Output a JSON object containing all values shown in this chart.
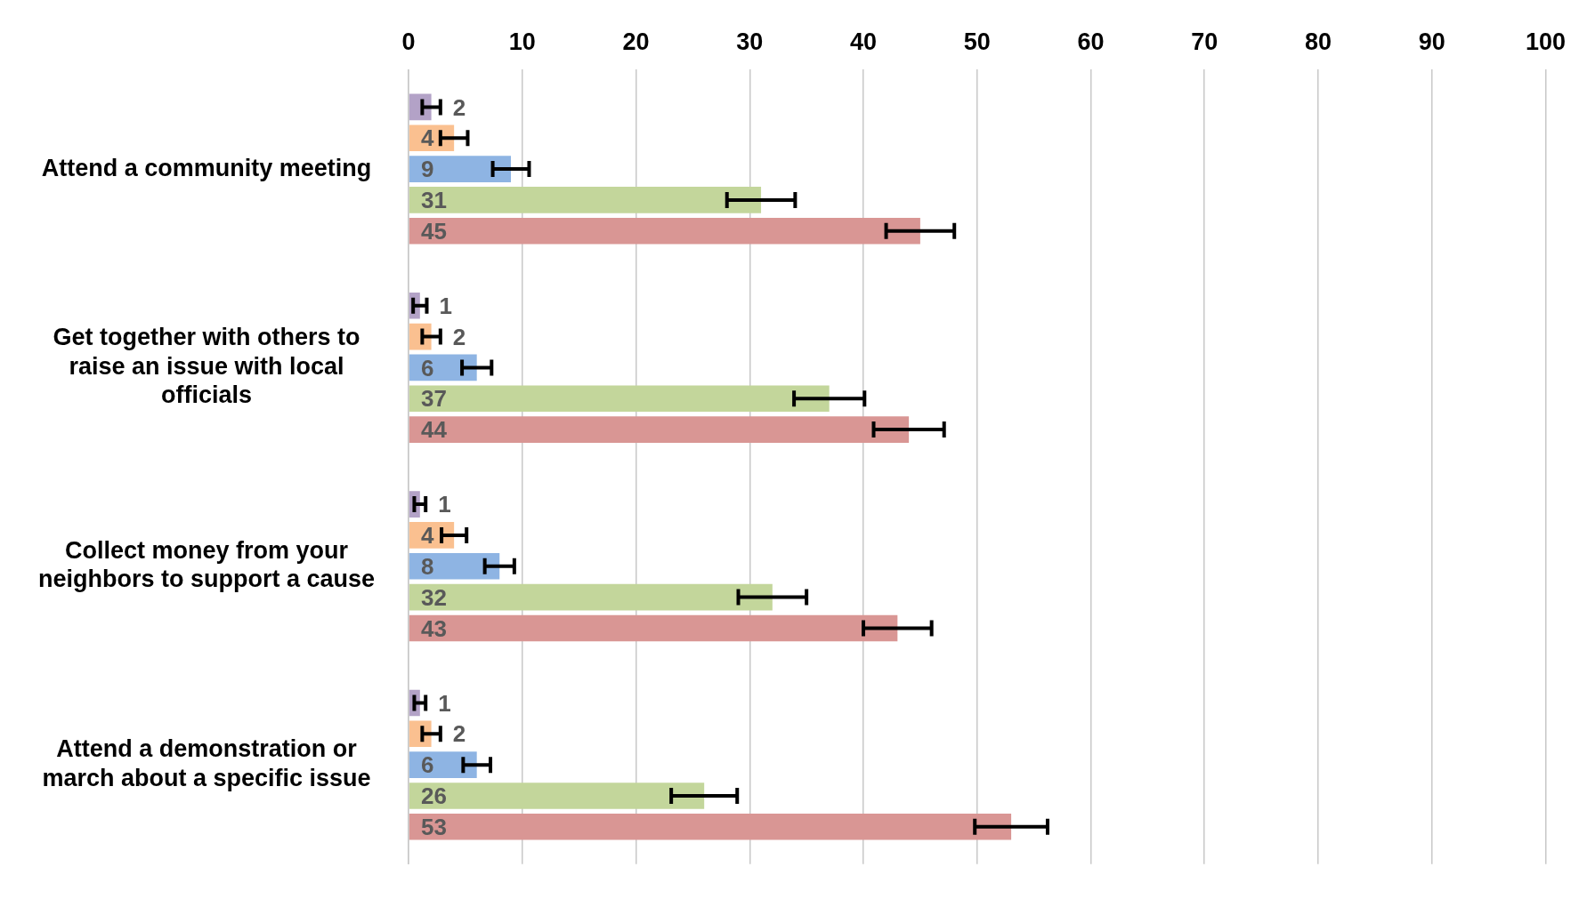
{
  "chart_data": {
    "type": "bar",
    "orientation": "horizontal",
    "categories": [
      "Attend a community meeting",
      "Get together with others to raise an issue with local officials",
      "Collect money from your neighbors to support a cause",
      "Attend a demonstration or march about a specific issue"
    ],
    "series": [
      {
        "color": "#b3a2c7",
        "values": [
          2,
          1,
          1,
          1
        ],
        "errors": [
          0.8,
          0.6,
          0.5,
          0.5
        ]
      },
      {
        "color": "#fac090",
        "values": [
          4,
          2,
          4,
          2
        ],
        "errors": [
          1.2,
          0.8,
          1.1,
          0.8
        ]
      },
      {
        "color": "#8eb4e3",
        "values": [
          9,
          6,
          8,
          6
        ],
        "errors": [
          1.6,
          1.3,
          1.3,
          1.2
        ]
      },
      {
        "color": "#c3d69b",
        "values": [
          31,
          37,
          32,
          26
        ],
        "errors": [
          3,
          3.1,
          3,
          2.9
        ]
      },
      {
        "color": "#d99694",
        "values": [
          45,
          44,
          43,
          53
        ],
        "errors": [
          3,
          3.1,
          3,
          3.2
        ]
      }
    ],
    "xlim": [
      0,
      100
    ],
    "xticks": [
      0,
      10,
      20,
      30,
      40,
      50,
      60,
      70,
      80,
      90,
      100
    ],
    "grid": "x",
    "data_labels": true,
    "legend": false
  }
}
